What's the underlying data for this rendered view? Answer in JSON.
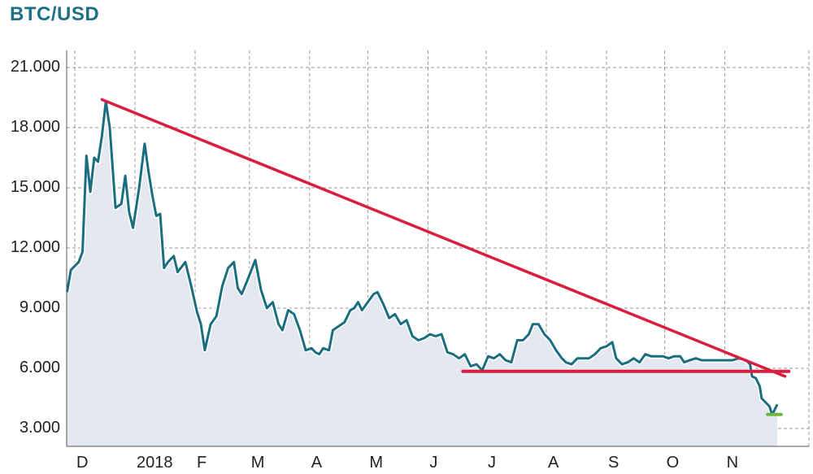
{
  "title": "BTC/USD",
  "chart_data": {
    "type": "line",
    "title": "BTC/USD",
    "xlabel": "",
    "ylabel": "",
    "ylim": [
      2000,
      21000
    ],
    "y_ticks": [
      3000,
      6000,
      9000,
      12000,
      15000,
      18000,
      21000
    ],
    "y_tick_labels": [
      "3.000",
      "6.000",
      "9.000",
      "12.000",
      "15.000",
      "18.000",
      "21.000"
    ],
    "x_tick_labels": [
      "D",
      "2018",
      "F",
      "M",
      "A",
      "M",
      "J",
      "J",
      "A",
      "S",
      "O",
      "N"
    ],
    "x_ticks": [
      "2017-12-01",
      "2018-01-01",
      "2018-02-01",
      "2018-03-01",
      "2018-04-01",
      "2018-05-01",
      "2018-06-01",
      "2018-07-01",
      "2018-08-01",
      "2018-09-01",
      "2018-10-01",
      "2018-11-01"
    ],
    "grid": true,
    "series": [
      {
        "color": "#1a6e80",
        "fill": "#e3e8f1",
        "points": [
          [
            "2017-11-27",
            9800
          ],
          [
            "2017-11-29",
            10900
          ],
          [
            "2017-12-03",
            11300
          ],
          [
            "2017-12-05",
            11800
          ],
          [
            "2017-12-07",
            16600
          ],
          [
            "2017-12-09",
            14800
          ],
          [
            "2017-12-11",
            16500
          ],
          [
            "2017-12-13",
            16300
          ],
          [
            "2017-12-15",
            17600
          ],
          [
            "2017-12-17",
            19300
          ],
          [
            "2017-12-19",
            18000
          ],
          [
            "2017-12-22",
            14000
          ],
          [
            "2017-12-25",
            14200
          ],
          [
            "2017-12-27",
            15600
          ],
          [
            "2017-12-29",
            13800
          ],
          [
            "2017-12-31",
            13000
          ],
          [
            "2018-01-03",
            14900
          ],
          [
            "2018-01-06",
            17200
          ],
          [
            "2018-01-08",
            15800
          ],
          [
            "2018-01-10",
            14600
          ],
          [
            "2018-01-12",
            13600
          ],
          [
            "2018-01-14",
            13700
          ],
          [
            "2018-01-16",
            11000
          ],
          [
            "2018-01-18",
            11300
          ],
          [
            "2018-01-21",
            11600
          ],
          [
            "2018-01-23",
            10800
          ],
          [
            "2018-01-27",
            11300
          ],
          [
            "2018-01-30",
            10100
          ],
          [
            "2018-02-02",
            8800
          ],
          [
            "2018-02-04",
            8200
          ],
          [
            "2018-02-06",
            6900
          ],
          [
            "2018-02-09",
            8200
          ],
          [
            "2018-02-12",
            8600
          ],
          [
            "2018-02-15",
            10100
          ],
          [
            "2018-02-18",
            11000
          ],
          [
            "2018-02-21",
            11300
          ],
          [
            "2018-02-23",
            10000
          ],
          [
            "2018-02-25",
            9700
          ],
          [
            "2018-02-28",
            10400
          ],
          [
            "2018-03-04",
            11400
          ],
          [
            "2018-03-07",
            9900
          ],
          [
            "2018-03-10",
            9000
          ],
          [
            "2018-03-13",
            9300
          ],
          [
            "2018-03-16",
            8200
          ],
          [
            "2018-03-18",
            7900
          ],
          [
            "2018-03-21",
            8900
          ],
          [
            "2018-03-24",
            8700
          ],
          [
            "2018-03-27",
            7900
          ],
          [
            "2018-03-30",
            6900
          ],
          [
            "2018-04-02",
            7000
          ],
          [
            "2018-04-04",
            6800
          ],
          [
            "2018-04-06",
            6700
          ],
          [
            "2018-04-08",
            7000
          ],
          [
            "2018-04-11",
            6900
          ],
          [
            "2018-04-13",
            7900
          ],
          [
            "2018-04-16",
            8100
          ],
          [
            "2018-04-19",
            8300
          ],
          [
            "2018-04-22",
            8900
          ],
          [
            "2018-04-24",
            9000
          ],
          [
            "2018-04-26",
            9300
          ],
          [
            "2018-04-28",
            8900
          ],
          [
            "2018-05-01",
            9300
          ],
          [
            "2018-05-04",
            9700
          ],
          [
            "2018-05-06",
            9800
          ],
          [
            "2018-05-09",
            9200
          ],
          [
            "2018-05-12",
            8500
          ],
          [
            "2018-05-15",
            8700
          ],
          [
            "2018-05-18",
            8200
          ],
          [
            "2018-05-21",
            8400
          ],
          [
            "2018-05-24",
            7600
          ],
          [
            "2018-05-27",
            7400
          ],
          [
            "2018-05-30",
            7500
          ],
          [
            "2018-06-02",
            7700
          ],
          [
            "2018-06-05",
            7600
          ],
          [
            "2018-06-08",
            7700
          ],
          [
            "2018-06-11",
            6800
          ],
          [
            "2018-06-14",
            6700
          ],
          [
            "2018-06-17",
            6500
          ],
          [
            "2018-06-20",
            6700
          ],
          [
            "2018-06-23",
            6100
          ],
          [
            "2018-06-26",
            6200
          ],
          [
            "2018-06-29",
            5900
          ],
          [
            "2018-07-02",
            6600
          ],
          [
            "2018-07-05",
            6500
          ],
          [
            "2018-07-08",
            6700
          ],
          [
            "2018-07-11",
            6400
          ],
          [
            "2018-07-14",
            6300
          ],
          [
            "2018-07-17",
            7400
          ],
          [
            "2018-07-20",
            7400
          ],
          [
            "2018-07-23",
            7700
          ],
          [
            "2018-07-25",
            8200
          ],
          [
            "2018-07-28",
            8200
          ],
          [
            "2018-07-31",
            7700
          ],
          [
            "2018-08-03",
            7400
          ],
          [
            "2018-08-06",
            6900
          ],
          [
            "2018-08-09",
            6500
          ],
          [
            "2018-08-11",
            6300
          ],
          [
            "2018-08-14",
            6200
          ],
          [
            "2018-08-17",
            6500
          ],
          [
            "2018-08-20",
            6500
          ],
          [
            "2018-08-23",
            6500
          ],
          [
            "2018-08-26",
            6700
          ],
          [
            "2018-08-29",
            7000
          ],
          [
            "2018-09-01",
            7100
          ],
          [
            "2018-09-04",
            7300
          ],
          [
            "2018-09-06",
            6500
          ],
          [
            "2018-09-09",
            6200
          ],
          [
            "2018-09-12",
            6300
          ],
          [
            "2018-09-15",
            6500
          ],
          [
            "2018-09-18",
            6300
          ],
          [
            "2018-09-21",
            6700
          ],
          [
            "2018-09-24",
            6600
          ],
          [
            "2018-09-27",
            6600
          ],
          [
            "2018-09-30",
            6600
          ],
          [
            "2018-10-03",
            6500
          ],
          [
            "2018-10-06",
            6600
          ],
          [
            "2018-10-09",
            6600
          ],
          [
            "2018-10-11",
            6300
          ],
          [
            "2018-10-14",
            6400
          ],
          [
            "2018-10-17",
            6500
          ],
          [
            "2018-10-20",
            6400
          ],
          [
            "2018-10-24",
            6400
          ],
          [
            "2018-10-28",
            6400
          ],
          [
            "2018-11-01",
            6400
          ],
          [
            "2018-11-05",
            6400
          ],
          [
            "2018-11-08",
            6500
          ],
          [
            "2018-11-12",
            6400
          ],
          [
            "2018-11-14",
            6200
          ],
          [
            "2018-11-15",
            5600
          ],
          [
            "2018-11-17",
            5500
          ],
          [
            "2018-11-19",
            5100
          ],
          [
            "2018-11-20",
            4500
          ],
          [
            "2018-11-22",
            4300
          ],
          [
            "2018-11-24",
            4100
          ],
          [
            "2018-11-25",
            3800
          ],
          [
            "2018-11-26",
            3800
          ],
          [
            "2018-11-27",
            4000
          ],
          [
            "2018-11-28",
            4200
          ]
        ]
      }
    ],
    "annotations": [
      {
        "type": "trendline",
        "color": "#d91e3f",
        "from": [
          "2017-12-15",
          19400
        ],
        "to": [
          "2018-12-02",
          5600
        ]
      },
      {
        "type": "support",
        "color": "#d91e3f",
        "from": [
          "2018-06-19",
          5850
        ],
        "to": [
          "2018-12-04",
          5850
        ]
      },
      {
        "type": "support",
        "color": "#6fb63f",
        "from": [
          "2018-11-23",
          3700
        ],
        "to": [
          "2018-11-30",
          3700
        ]
      }
    ]
  }
}
